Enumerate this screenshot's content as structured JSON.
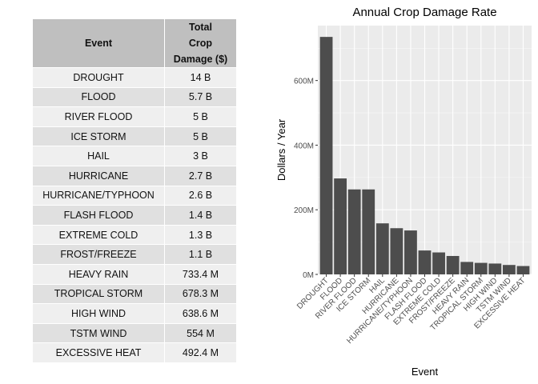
{
  "table": {
    "headers": [
      "Event",
      "Total\nCrop\nDamage ($)"
    ],
    "rows": [
      [
        "DROUGHT",
        "14 B"
      ],
      [
        "FLOOD",
        "5.7 B"
      ],
      [
        "RIVER FLOOD",
        "5 B"
      ],
      [
        "ICE STORM",
        "5 B"
      ],
      [
        "HAIL",
        "3 B"
      ],
      [
        "HURRICANE",
        "2.7 B"
      ],
      [
        "HURRICANE/TYPHOON",
        "2.6 B"
      ],
      [
        "FLASH FLOOD",
        "1.4 B"
      ],
      [
        "EXTREME COLD",
        "1.3 B"
      ],
      [
        "FROST/FREEZE",
        "1.1 B"
      ],
      [
        "HEAVY RAIN",
        "733.4 M"
      ],
      [
        "TROPICAL STORM",
        "678.3 M"
      ],
      [
        "HIGH WIND",
        "638.6 M"
      ],
      [
        "TSTM WIND",
        "554 M"
      ],
      [
        "EXCESSIVE HEAT",
        "492.4 M"
      ]
    ]
  },
  "chart_data": {
    "type": "bar",
    "title": "Annual Crop Damage Rate",
    "xlabel": "Event",
    "ylabel": "Dollars / Year",
    "categories": [
      "DROUGHT",
      "FLOOD",
      "RIVER FLOOD",
      "ICE STORM",
      "HAIL",
      "HURRICANE",
      "HURRICANE/TYPHOON",
      "FLASH FLOOD",
      "EXTREME COLD",
      "FROST/FREEZE",
      "HEAVY RAIN",
      "TROPICAL STORM",
      "HIGH WIND",
      "TSTM WIND",
      "EXCESSIVE HEAT"
    ],
    "values": [
      735000000,
      297000000,
      263000000,
      263000000,
      158000000,
      143000000,
      136000000,
      74000000,
      68000000,
      57000000,
      38600000,
      35700000,
      33600000,
      29200000,
      25900000
    ],
    "ylim": [
      0,
      770000000
    ],
    "yticks": [
      0,
      200000000,
      400000000,
      600000000
    ],
    "yticklabels": [
      "0M",
      "200M",
      "400M",
      "600M"
    ],
    "grid": true,
    "bar_color": "#4d4d4d",
    "panel_color": "#ebebeb"
  }
}
